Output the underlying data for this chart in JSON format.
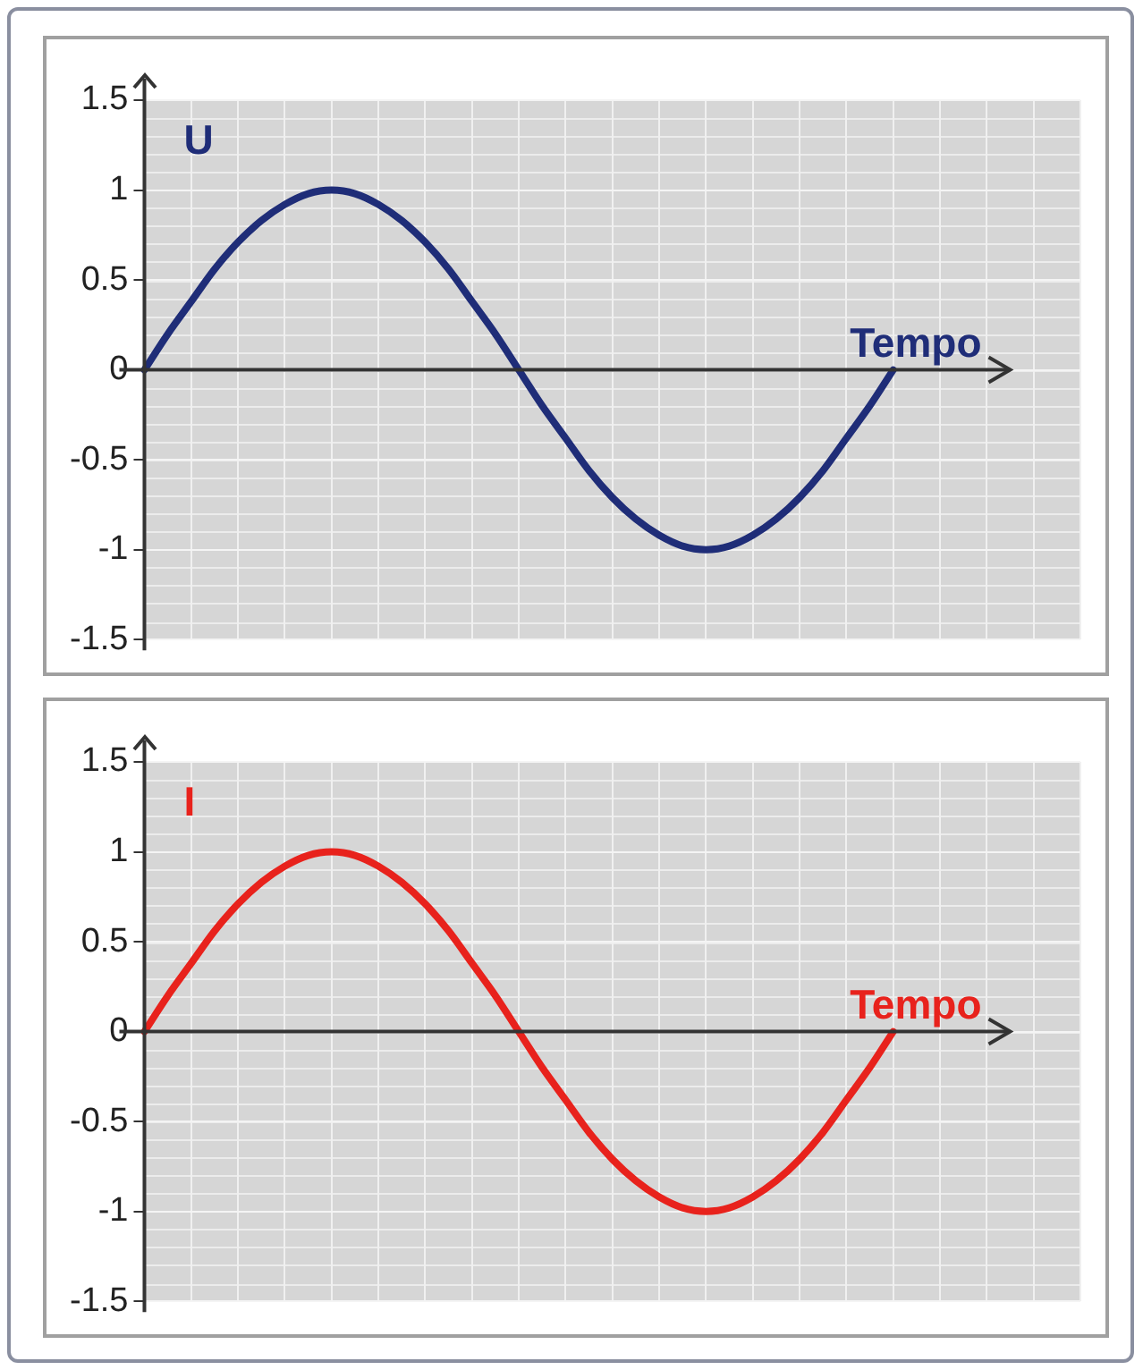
{
  "chart_data": [
    {
      "type": "line",
      "ylabel": "U",
      "xlabel": "Tempo",
      "categories": [
        null,
        null,
        null,
        null,
        null,
        null,
        null,
        null,
        null,
        null,
        null,
        null,
        null,
        null,
        null,
        null,
        null,
        null,
        null,
        null,
        null,
        null,
        null,
        null,
        null,
        null,
        null,
        null,
        null,
        null,
        null,
        null,
        null,
        null,
        null,
        null,
        null,
        null,
        null,
        null,
        null
      ],
      "series": [
        {
          "color": "#1f2d78",
          "values": [
            0,
            0.2,
            0.38,
            0.56,
            0.71,
            0.83,
            0.92,
            0.98,
            1,
            0.98,
            0.92,
            0.83,
            0.71,
            0.56,
            0.38,
            0.2,
            0,
            -0.2,
            -0.38,
            -0.56,
            -0.71,
            -0.83,
            -0.92,
            -0.98,
            -1,
            -0.98,
            -0.92,
            -0.83,
            -0.71,
            -0.56,
            -0.38,
            -0.2,
            0,
            null,
            null,
            null,
            null,
            null,
            null,
            null,
            null
          ]
        }
      ],
      "ylim": [
        -1.5,
        1.5
      ],
      "yticks": [
        -1.5,
        -1,
        -0.5,
        0,
        0.5,
        1,
        1.5
      ],
      "grid": true,
      "tick_labels": "y",
      "marker": "none",
      "legend": false
    },
    {
      "type": "line",
      "ylabel": "I",
      "xlabel": "Tempo",
      "categories": [
        null,
        null,
        null,
        null,
        null,
        null,
        null,
        null,
        null,
        null,
        null,
        null,
        null,
        null,
        null,
        null,
        null,
        null,
        null,
        null,
        null,
        null,
        null,
        null,
        null,
        null,
        null,
        null,
        null,
        null,
        null,
        null,
        null,
        null,
        null,
        null,
        null,
        null,
        null,
        null,
        null
      ],
      "series": [
        {
          "color": "#e8221c",
          "values": [
            0,
            0.2,
            0.38,
            0.56,
            0.71,
            0.83,
            0.92,
            0.98,
            1,
            0.98,
            0.92,
            0.83,
            0.71,
            0.56,
            0.38,
            0.2,
            0,
            -0.2,
            -0.38,
            -0.56,
            -0.71,
            -0.83,
            -0.92,
            -0.98,
            -1,
            -0.98,
            -0.92,
            -0.83,
            -0.71,
            -0.56,
            -0.38,
            -0.2,
            0,
            null,
            null,
            null,
            null,
            null,
            null,
            null,
            null
          ]
        }
      ],
      "ylim": [
        -1.5,
        1.5
      ],
      "yticks": [
        -1.5,
        -1,
        -0.5,
        0,
        0.5,
        1,
        1.5
      ],
      "grid": true,
      "tick_labels": "y",
      "marker": "none",
      "legend": false
    }
  ]
}
